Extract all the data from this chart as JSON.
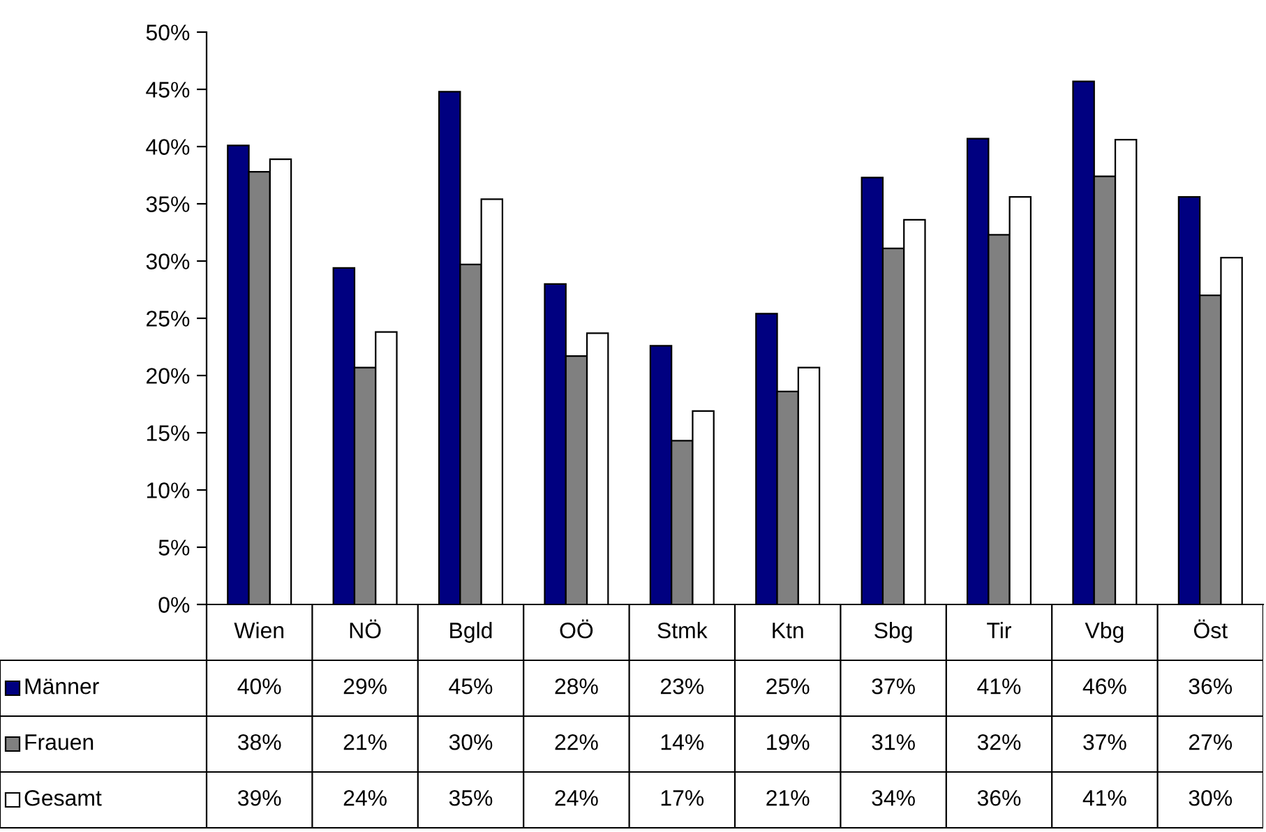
{
  "chart_data": {
    "type": "bar",
    "categories": [
      "Wien",
      "NÖ",
      "Bgld",
      "OÖ",
      "Stmk",
      "Ktn",
      "Sbg",
      "Tir",
      "Vbg",
      "Öst"
    ],
    "series": [
      {
        "name": "Männer",
        "color": "#000080",
        "values": [
          40.1,
          29.4,
          44.8,
          28.0,
          22.6,
          25.4,
          37.3,
          40.7,
          45.7,
          35.6
        ],
        "value_labels": [
          "40%",
          "29%",
          "45%",
          "28%",
          "23%",
          "25%",
          "37%",
          "41%",
          "46%",
          "36%"
        ]
      },
      {
        "name": "Frauen",
        "color": "#808080",
        "values": [
          37.8,
          20.7,
          29.7,
          21.7,
          14.3,
          18.6,
          31.1,
          32.3,
          37.4,
          27.0
        ],
        "value_labels": [
          "38%",
          "21%",
          "30%",
          "22%",
          "14%",
          "19%",
          "31%",
          "32%",
          "37%",
          "27%"
        ]
      },
      {
        "name": "Gesamt",
        "color": "#ffffff",
        "values": [
          38.9,
          23.8,
          35.4,
          23.7,
          16.9,
          20.7,
          33.6,
          35.6,
          40.6,
          30.3
        ],
        "value_labels": [
          "39%",
          "24%",
          "35%",
          "24%",
          "17%",
          "21%",
          "34%",
          "36%",
          "41%",
          "30%"
        ]
      }
    ],
    "ylim": [
      0,
      50
    ],
    "yticks": [
      {
        "value": 0,
        "label": "0%"
      },
      {
        "value": 5,
        "label": "5%"
      },
      {
        "value": 10,
        "label": "10%"
      },
      {
        "value": 15,
        "label": "15%"
      },
      {
        "value": 20,
        "label": "20%"
      },
      {
        "value": 25,
        "label": "25%"
      },
      {
        "value": 30,
        "label": "30%"
      },
      {
        "value": 35,
        "label": "35%"
      },
      {
        "value": 40,
        "label": "40%"
      },
      {
        "value": 45,
        "label": "45%"
      },
      {
        "value": 50,
        "label": "50%"
      }
    ],
    "grid": false,
    "legend": "bottom"
  }
}
